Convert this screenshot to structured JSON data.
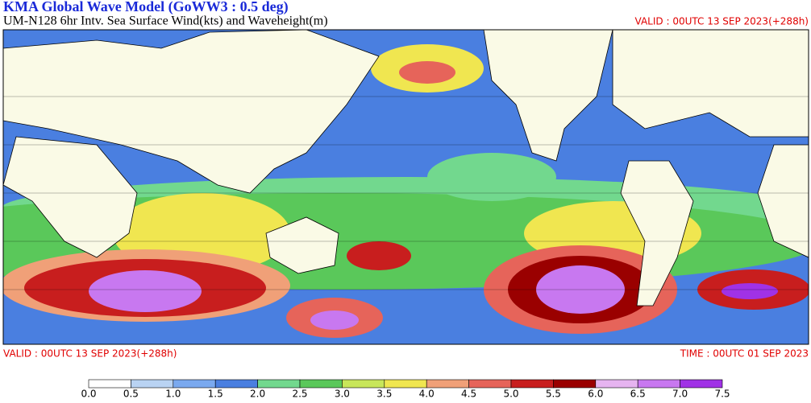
{
  "header": {
    "title": "KMA  Global Wave Model (GoWW3 : 0.5 deg)",
    "subtitle": "UM-N128  6hr Intv. Sea Surface Wind(kts) and Waveheight(m)",
    "valid_top": "VALID : 00UTC 13 SEP 2023(+288h)"
  },
  "footer": {
    "valid": "VALID : 00UTC 13 SEP 2023(+288h)",
    "time": "TIME : 00UTC 01 SEP 2023"
  },
  "legend": {
    "ticks": [
      {
        "value": 0,
        "label": "0.0"
      },
      0.5,
      {
        "value": 1,
        "label": "1.0"
      },
      1.5,
      {
        "value": 2,
        "label": "2.0"
      },
      2.5,
      {
        "value": 3,
        "label": "3.0"
      },
      3.5,
      {
        "value": 4,
        "label": "4.0"
      },
      4.5,
      {
        "value": 5,
        "label": "5.0"
      },
      5.5,
      {
        "value": 6,
        "label": "6.0"
      },
      6.5,
      {
        "value": 7,
        "label": "7.0"
      },
      7.5
    ],
    "colors": [
      "#ffffff",
      "#b9d3f3",
      "#7aa9ef",
      "#4a7fe0",
      "#72d88e",
      "#5ac85a",
      "#c8e65a",
      "#f0e650",
      "#f0a078",
      "#e6645a",
      "#c81e1e",
      "#9a0000",
      "#e6b4f0",
      "#c878f0",
      "#a032e6"
    ]
  }
}
